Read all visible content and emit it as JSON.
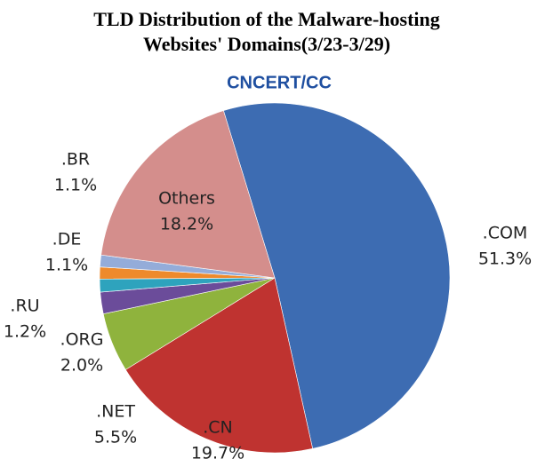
{
  "chart_data": {
    "type": "pie",
    "title": [
      "TLD Distribution of the Malware-hosting",
      "Websites' Domains(3/23-3/29)"
    ],
    "logo": "CNCERT/CC",
    "categories": [
      ".COM",
      ".CN",
      ".NET",
      ".ORG",
      ".RU",
      ".DE",
      ".BR",
      "Others"
    ],
    "values": [
      51.3,
      19.7,
      5.5,
      2.0,
      1.2,
      1.1,
      1.1,
      18.2
    ],
    "value_labels": [
      "51.3%",
      "19.7%",
      "5.5%",
      "2.0%",
      "1.2%",
      "1.1%",
      "1.1%",
      "18.2%"
    ],
    "colors": [
      "#3d6cb2",
      "#bf3330",
      "#8fb33d",
      "#6b4c9a",
      "#2ea3bd",
      "#ee8a2c",
      "#94acd9",
      "#d48e8c"
    ]
  }
}
